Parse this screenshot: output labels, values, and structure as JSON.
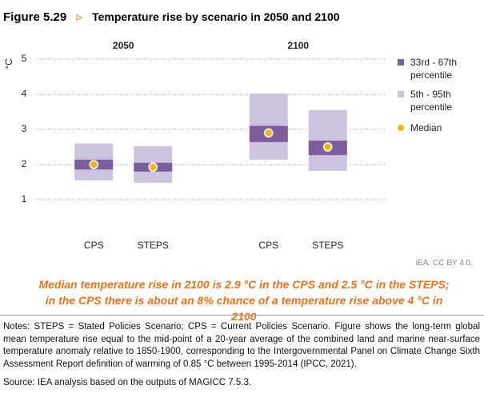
{
  "figure_label": "Figure 5.29",
  "chart_data": {
    "type": "range",
    "title": "Temperature rise by scenario in 2050 and 2100",
    "y_label": "°C",
    "groups": [
      "2050",
      "2100"
    ],
    "categories": [
      "CPS",
      "STEPS",
      "CPS",
      "STEPS"
    ],
    "series": [
      {
        "name": "33rd - 67th percentile",
        "color": "#7b5e9e",
        "low": [
          1.86,
          1.8,
          2.64,
          2.27
        ],
        "high": [
          2.14,
          2.05,
          3.1,
          2.68
        ]
      },
      {
        "name": "5th - 95th percentile",
        "color": "#ccc3de",
        "low": [
          1.55,
          1.48,
          2.14,
          1.82
        ],
        "high": [
          2.6,
          2.52,
          4.02,
          3.55
        ]
      },
      {
        "name": "Median",
        "color": "#f5b700",
        "values": [
          2.0,
          1.93,
          2.9,
          2.5
        ]
      }
    ],
    "ylim": [
      0,
      5
    ],
    "yticks": [
      1,
      2,
      3,
      4,
      5
    ],
    "grid": true
  },
  "credit": "IEA. CC BY 4.0.",
  "caption": "Median temperature rise in 2100 is 2.9 °C in the CPS and 2.5 °C in the STEPS; in the CPS there is about an 8% chance of a temperature rise above 4 °C in 2100",
  "notes": "Notes: STEPS = Stated Policies Scenario; CPS = Current Policies Scenario. Figure shows the long-term global mean temperature rise equal to the mid-point of a 20-year average of the combined land and marine near-surface temperature anomaly relative to 1850-1900, corresponding to the Intergovernmental Panel on Climate Change Sixth Assessment Report definition of warming of 0.85 °C between 1995-2014 (IPCC, 2021).",
  "source": "Source: IEA analysis based on the outputs of MAGICC 7.5.3."
}
